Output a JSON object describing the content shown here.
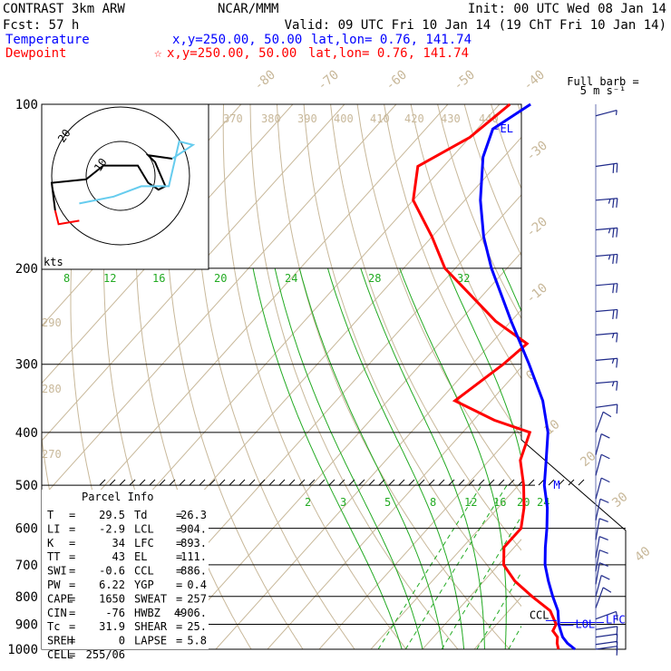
{
  "header": {
    "title": "CONTRAST  3km ARW",
    "center": "NCAR/MMM",
    "init": "Init: 00 UTC Wed 08 Jan 14",
    "fcst": "Fcst:    57 h",
    "valid": "Valid: 09 UTC Fri 10 Jan 14 (19 ChT Fri 10 Jan 14)",
    "temp_label": "Temperature",
    "temp_xy": "x,y=250.00, 50.00",
    "temp_latlon": "lat,lon=  0.76, 141.74",
    "dew_label": "Dewpoint",
    "dew_marker": "☆",
    "dew_xy": "x,y=250.00, 50.00",
    "dew_latlon": "lat,lon=  0.76, 141.74",
    "barb_key": "Full barb =",
    "barb_key_units": "5 m s⁻¹",
    "hodo_units": "kts",
    "hodo_ring_label": "20",
    "hodo_inner_label": "10"
  },
  "colors": {
    "temperature": "#0000ff",
    "dewpoint": "#ff0000",
    "isotherm": "#c8b89a",
    "dry_adiabat": "#c8b89a",
    "moist_adiabat": "#22aa22",
    "mixing_ratio": "#22aa22",
    "hodograph_low": "#ff0000",
    "hodograph_mid": "#000000",
    "hodograph_high": "#66ccee"
  },
  "parcel_info": {
    "title": "Parcel Info",
    "rows": [
      [
        "T",
        "29.5",
        "Td",
        "26.3"
      ],
      [
        "LI",
        "-2.9",
        "LCL",
        "904."
      ],
      [
        "K",
        "34",
        "LFC",
        "893."
      ],
      [
        "TT",
        "43",
        "EL",
        "111."
      ],
      [
        "SWI",
        "-0.6",
        "CCL",
        "886."
      ],
      [
        "PW",
        "6.22",
        "YGP",
        "0.4"
      ],
      [
        "CAPE",
        "1650",
        "SWEAT",
        "257"
      ],
      [
        "CIN",
        "-76",
        "HWBZ",
        "4906."
      ],
      [
        "Tc",
        "31.9",
        "SHEAR",
        "25."
      ],
      [
        "SREH",
        "0",
        "LAPSE",
        "5.8"
      ],
      [
        "CELL",
        "255/06",
        "",
        ""
      ]
    ]
  },
  "chart_data": {
    "type": "line",
    "title": "",
    "ylabel": "",
    "xlabel": "",
    "y_scale": "log-pressure",
    "ylim": [
      1000,
      100
    ],
    "pressure_labels": [
      "100",
      "200",
      "300",
      "400",
      "500",
      "600",
      "700",
      "800",
      "900",
      "1000"
    ],
    "isotherm_labels": [
      "-80",
      "-70",
      "-60",
      "-50",
      "-40",
      "-30",
      "-20",
      "-10",
      "0",
      "10",
      "20",
      "30",
      "40"
    ],
    "theta_labels": [
      "370",
      "380",
      "390",
      "400",
      "410",
      "420",
      "430",
      "440",
      "290",
      "280",
      "270"
    ],
    "theta_e_labels": [
      "8",
      "12",
      "16",
      "20",
      "24",
      "28",
      "32"
    ],
    "mixing_ratio_labels": [
      "2",
      "3",
      "5",
      "8",
      "12",
      "16",
      "20",
      "24"
    ],
    "levels": [
      {
        "name": "EL",
        "pressure": 111
      },
      {
        "name": "M",
        "pressure": 500
      },
      {
        "name": "CCL",
        "pressure": 886
      },
      {
        "name": "LOL",
        "pressure": 904
      },
      {
        "name": "LFC",
        "pressure": 893
      }
    ],
    "series": [
      {
        "name": "Temperature",
        "points": [
          [
            1000,
            29.5
          ],
          [
            975,
            27
          ],
          [
            950,
            25
          ],
          [
            925,
            23.5
          ],
          [
            900,
            22
          ],
          [
            850,
            19.5
          ],
          [
            800,
            16
          ],
          [
            750,
            12.5
          ],
          [
            700,
            9
          ],
          [
            650,
            6
          ],
          [
            600,
            3
          ],
          [
            550,
            -0.5
          ],
          [
            500,
            -5
          ],
          [
            450,
            -9
          ],
          [
            400,
            -13.5
          ],
          [
            350,
            -20
          ],
          [
            300,
            -29
          ],
          [
            250,
            -40
          ],
          [
            200,
            -53
          ],
          [
            175,
            -60
          ],
          [
            150,
            -67
          ],
          [
            125,
            -74
          ],
          [
            111,
            -77
          ],
          [
            100,
            -74
          ]
        ]
      },
      {
        "name": "Dewpoint",
        "points": [
          [
            1000,
            26.3
          ],
          [
            975,
            25
          ],
          [
            950,
            24
          ],
          [
            925,
            22
          ],
          [
            900,
            21.5
          ],
          [
            850,
            18
          ],
          [
            800,
            12
          ],
          [
            750,
            6
          ],
          [
            700,
            1
          ],
          [
            650,
            -2
          ],
          [
            600,
            -2
          ],
          [
            550,
            -5
          ],
          [
            500,
            -9
          ],
          [
            450,
            -14
          ],
          [
            400,
            -17
          ],
          [
            380,
            -26
          ],
          [
            350,
            -37
          ],
          [
            300,
            -34
          ],
          [
            275,
            -33
          ],
          [
            250,
            -43
          ],
          [
            200,
            -62
          ],
          [
            175,
            -70
          ],
          [
            150,
            -80
          ],
          [
            130,
            -85
          ],
          [
            115,
            -80
          ],
          [
            100,
            -78
          ]
        ]
      }
    ]
  },
  "hodograph": {
    "low": [
      [
        -12,
        -13
      ],
      [
        -18,
        -14
      ],
      [
        -19,
        -10
      ]
    ],
    "mid": [
      [
        -19,
        -10
      ],
      [
        -20,
        -2
      ],
      [
        -10,
        -1
      ],
      [
        -5,
        3
      ],
      [
        5,
        3
      ],
      [
        8,
        -2
      ],
      [
        11,
        -4
      ],
      [
        13,
        -3
      ],
      [
        10,
        4
      ],
      [
        8,
        6
      ],
      [
        15,
        5
      ]
    ],
    "high": [
      [
        15,
        5
      ],
      [
        18,
        7
      ],
      [
        21,
        9
      ],
      [
        17,
        10
      ],
      [
        14,
        -3
      ],
      [
        6,
        -3
      ],
      [
        -2,
        -6
      ],
      [
        -12,
        -8
      ]
    ]
  },
  "wind_profile": [
    {
      "p": 105,
      "speed": 5,
      "dir": 255
    },
    {
      "p": 130,
      "speed": 20,
      "dir": 262
    },
    {
      "p": 150,
      "speed": 25,
      "dir": 265
    },
    {
      "p": 170,
      "speed": 25,
      "dir": 265
    },
    {
      "p": 190,
      "speed": 25,
      "dir": 265
    },
    {
      "p": 215,
      "speed": 20,
      "dir": 265
    },
    {
      "p": 240,
      "speed": 20,
      "dir": 265
    },
    {
      "p": 265,
      "speed": 15,
      "dir": 265
    },
    {
      "p": 295,
      "speed": 15,
      "dir": 265
    },
    {
      "p": 325,
      "speed": 15,
      "dir": 265
    },
    {
      "p": 360,
      "speed": 10,
      "dir": 262
    },
    {
      "p": 400,
      "speed": 10,
      "dir": 200
    },
    {
      "p": 440,
      "speed": 10,
      "dir": 195
    },
    {
      "p": 480,
      "speed": 10,
      "dir": 195
    },
    {
      "p": 530,
      "speed": 10,
      "dir": 195
    },
    {
      "p": 580,
      "speed": 10,
      "dir": 192
    },
    {
      "p": 630,
      "speed": 10,
      "dir": 190
    },
    {
      "p": 680,
      "speed": 10,
      "dir": 190
    },
    {
      "p": 720,
      "speed": 10,
      "dir": 190
    },
    {
      "p": 760,
      "speed": 10,
      "dir": 190
    },
    {
      "p": 800,
      "speed": 10,
      "dir": 195
    },
    {
      "p": 840,
      "speed": 10,
      "dir": 200
    },
    {
      "p": 880,
      "speed": 10,
      "dir": 250
    },
    {
      "p": 920,
      "speed": 10,
      "dir": 262
    },
    {
      "p": 950,
      "speed": 10,
      "dir": 262
    },
    {
      "p": 980,
      "speed": 10,
      "dir": 262
    },
    {
      "p": 1000,
      "speed": 10,
      "dir": 262
    }
  ]
}
